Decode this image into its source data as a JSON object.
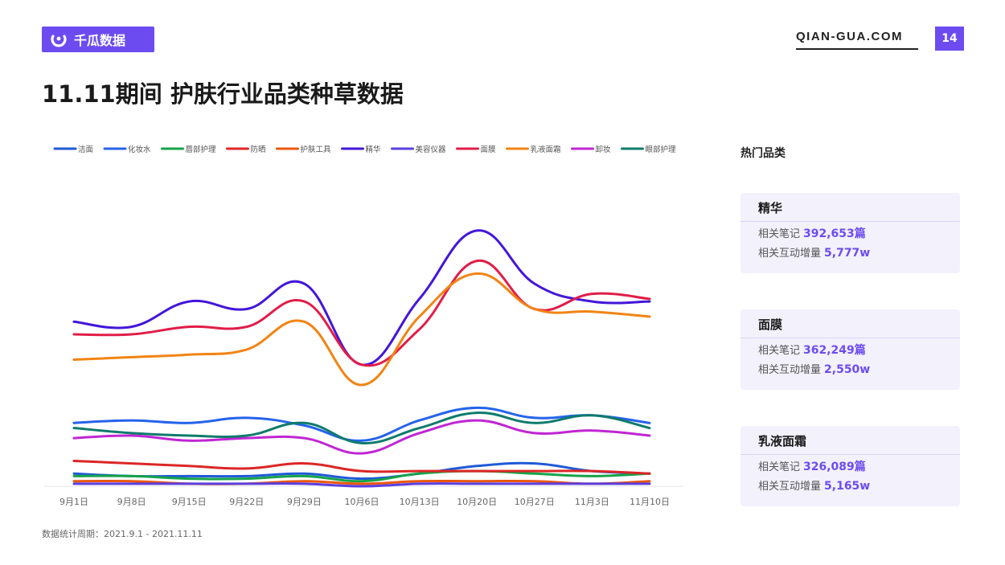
{
  "header": {
    "brand": "千瓜数据",
    "site": "QIAN-GUA.COM",
    "page_number": "14",
    "title": "11.11期间 护肤行业品类种草数据"
  },
  "footnote": "数据统计周期：2021.9.1 - 2021.11.11",
  "panel": {
    "title": "热门品类",
    "note_label": "相关笔记",
    "interaction_label": "相关互动增量",
    "cards": [
      {
        "name": "精华",
        "notes": "392,653篇",
        "interactions": "5,777w"
      },
      {
        "name": "面膜",
        "notes": "362,249篇",
        "interactions": "2,550w"
      },
      {
        "name": "乳液面霜",
        "notes": "326,089篇",
        "interactions": "5,165w"
      }
    ]
  },
  "chart_data": {
    "type": "line",
    "categories": [
      "9月1日",
      "9月8日",
      "9月15日",
      "9月22日",
      "9月29日",
      "10月6日",
      "10月13日",
      "10月20日",
      "10月27日",
      "11月3日",
      "11月10日"
    ],
    "ylim": [
      0,
      100
    ],
    "grid": false,
    "legend_position": "top",
    "series": [
      {
        "name": "洁面",
        "color": "#1f5ad8",
        "values": [
          5,
          4,
          4,
          4,
          5,
          3,
          5,
          8,
          9,
          6,
          5
        ]
      },
      {
        "name": "化妆水",
        "color": "#2563eb",
        "values": [
          25,
          26,
          25,
          27,
          24,
          18,
          26,
          31,
          27,
          28,
          25
        ]
      },
      {
        "name": "唇部护理",
        "color": "#16a34a",
        "values": [
          4,
          4,
          3,
          3,
          4,
          2,
          5,
          6,
          5,
          4,
          5
        ]
      },
      {
        "name": "防晒",
        "color": "#dc2626",
        "values": [
          10,
          9,
          8,
          7,
          9,
          6,
          6,
          6,
          6,
          6,
          5
        ]
      },
      {
        "name": "护肤工具",
        "color": "#ea580c",
        "values": [
          2,
          2,
          1,
          1,
          2,
          1,
          2,
          2,
          2,
          1,
          2
        ]
      },
      {
        "name": "精华",
        "color": "#4316d9",
        "values": [
          65,
          63,
          73,
          70,
          80,
          48,
          74,
          101,
          80,
          73,
          73
        ]
      },
      {
        "name": "美容仪器",
        "color": "#5b3fe0",
        "values": [
          1,
          1,
          1,
          1,
          1,
          0,
          1,
          1,
          1,
          1,
          1
        ]
      },
      {
        "name": "面膜",
        "color": "#e11d48",
        "values": [
          60,
          60,
          63,
          63,
          73,
          48,
          62,
          89,
          70,
          76,
          74
        ]
      },
      {
        "name": "乳液面霜",
        "color": "#f28413",
        "values": [
          50,
          51,
          52,
          54,
          65,
          40,
          67,
          84,
          70,
          69,
          67
        ]
      },
      {
        "name": "卸妆",
        "color": "#c026d3",
        "values": [
          19,
          20,
          18,
          19,
          19,
          13,
          21,
          26,
          21,
          22,
          20
        ]
      },
      {
        "name": "眼部护理",
        "color": "#0f7b6c",
        "values": [
          23,
          21,
          20,
          20,
          25,
          17,
          23,
          29,
          25,
          28,
          23
        ]
      }
    ]
  }
}
